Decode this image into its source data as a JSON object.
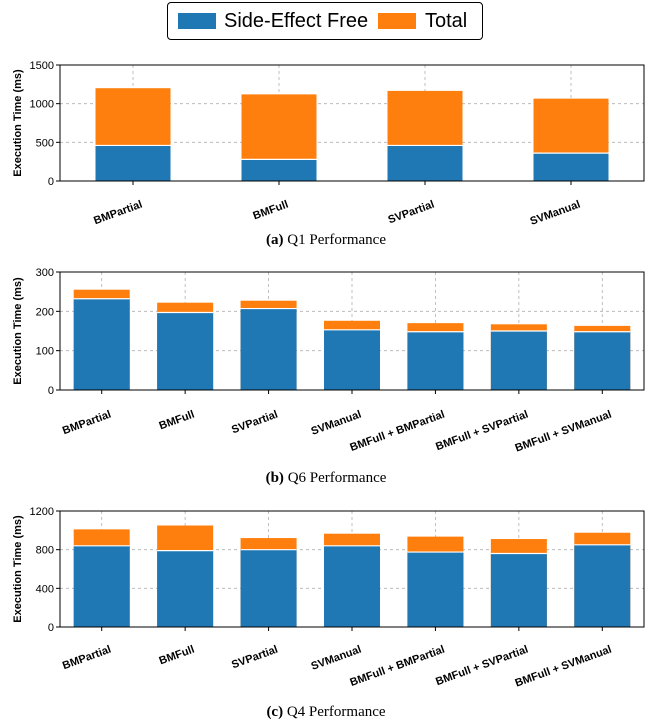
{
  "legend": {
    "items": [
      {
        "label": "Side-Effect Free",
        "color": "#1f77b4"
      },
      {
        "label": "Total",
        "color": "#ff7f0e"
      }
    ]
  },
  "captions": [
    {
      "tag": "(a)",
      "text": "Q1 Performance"
    },
    {
      "tag": "(b)",
      "text": "Q6 Performance"
    },
    {
      "tag": "(c)",
      "text": "Q4 Performance"
    }
  ],
  "colors": {
    "side_effect_free": "#1f77b4",
    "total": "#ff7f0e",
    "grid": "#b0b0b0"
  },
  "chart_data": [
    {
      "type": "bar",
      "stacked": true,
      "title": "",
      "xlabel": "",
      "ylabel": "Execution Time (ms)",
      "ylim": [
        0,
        1500
      ],
      "yticks": [
        0,
        500,
        1000,
        1500
      ],
      "grid": true,
      "legend_position": "top-center",
      "categories": [
        "BMPartial",
        "BMFull",
        "SVPartial",
        "SVManual"
      ],
      "series": [
        {
          "name": "Side-Effect Free",
          "values": [
            460,
            280,
            460,
            360
          ]
        },
        {
          "name": "Total",
          "values": [
            1200,
            1120,
            1165,
            1065
          ]
        }
      ]
    },
    {
      "type": "bar",
      "stacked": true,
      "title": "",
      "xlabel": "",
      "ylabel": "Execution Time (ms)",
      "ylim": [
        0,
        300
      ],
      "yticks": [
        0,
        100,
        200,
        300
      ],
      "grid": true,
      "legend_position": "top-center",
      "categories": [
        "BMPartial",
        "BMFull",
        "SVPartial",
        "SVManual",
        "BMFull + BMPartial",
        "BMFull + SVPartial",
        "BMFull + SVManual"
      ],
      "series": [
        {
          "name": "Side-Effect Free",
          "values": [
            232,
            197,
            207,
            153,
            148,
            150,
            148
          ]
        },
        {
          "name": "Total",
          "values": [
            255,
            222,
            227,
            176,
            170,
            167,
            163
          ]
        }
      ]
    },
    {
      "type": "bar",
      "stacked": true,
      "title": "",
      "xlabel": "",
      "ylabel": "Execution Time (ms)",
      "ylim": [
        0,
        1200
      ],
      "yticks": [
        0,
        400,
        800,
        1200
      ],
      "grid": true,
      "legend_position": "top-center",
      "categories": [
        "BMPartial",
        "BMFull",
        "SVPartial",
        "SVManual",
        "BMFull + BMPartial",
        "BMFull + SVPartial",
        "BMFull + SVManual"
      ],
      "series": [
        {
          "name": "Side-Effect Free",
          "values": [
            840,
            790,
            800,
            840,
            775,
            760,
            850
          ]
        },
        {
          "name": "Total",
          "values": [
            1010,
            1050,
            920,
            965,
            935,
            910,
            975
          ]
        }
      ]
    }
  ]
}
